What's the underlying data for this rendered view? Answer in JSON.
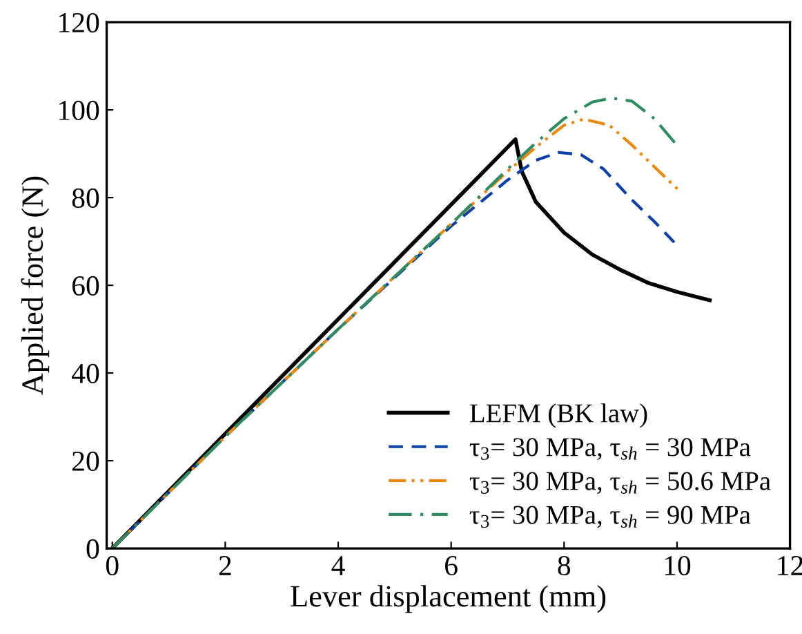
{
  "chart_data": {
    "type": "line",
    "xlabel": "Lever displacement (mm)",
    "ylabel": "Applied force (N)",
    "xlim": [
      -0.1,
      12
    ],
    "ylim": [
      0,
      120
    ],
    "xticks": [
      0,
      2,
      4,
      6,
      8,
      10,
      12
    ],
    "yticks": [
      0,
      20,
      40,
      60,
      80,
      100,
      120
    ],
    "grid": false,
    "legend": "bottom right",
    "series": [
      {
        "name": "LEFM (BK law)",
        "color": "#000000",
        "line_style": "solid",
        "x": [
          0,
          7.14,
          7.25,
          7.5,
          8,
          8.5,
          9,
          9.5,
          10,
          10.58
        ],
        "values": [
          0,
          93.3,
          86,
          79,
          72,
          67,
          63.5,
          60.5,
          58.5,
          56.6
        ]
      },
      {
        "name": "τ$_{3}$= 30 MPa, τ$_{sh}$ = 30 MPa",
        "color": "#0b3fa8",
        "line_style": "dashed",
        "x": [
          0,
          2,
          4,
          6,
          7,
          7.5,
          7.9,
          8.3,
          8.7,
          9.2,
          9.6,
          9.95
        ],
        "values": [
          0,
          25.5,
          50,
          73.5,
          84,
          88.5,
          90.3,
          89.8,
          86.5,
          79.5,
          74.5,
          69.8
        ]
      },
      {
        "name": "τ$_{3}$= 30 MPa, τ$_{sh}$ = 50.6 MPa",
        "color": "#e8880c",
        "line_style": "dashdotdot",
        "x": [
          0,
          2,
          4,
          6,
          7,
          7.5,
          8,
          8.35,
          8.8,
          9.2,
          9.6,
          10.02
        ],
        "values": [
          0,
          25.5,
          50,
          74,
          86,
          91.5,
          96.5,
          97.9,
          96.5,
          92,
          87,
          81.8
        ]
      },
      {
        "name": "τ$_{3}$= 30 MPa, τ$_{sh}$ = 90 MPa",
        "color": "#2e8b62",
        "line_style": "dashdot",
        "x": [
          0,
          2,
          4,
          6,
          7,
          7.5,
          8,
          8.5,
          8.84,
          9.2,
          9.6,
          10.02
        ],
        "values": [
          0,
          25.5,
          50,
          74,
          86.5,
          92.5,
          98,
          101.8,
          102.7,
          102,
          98,
          91.6
        ]
      }
    ]
  }
}
